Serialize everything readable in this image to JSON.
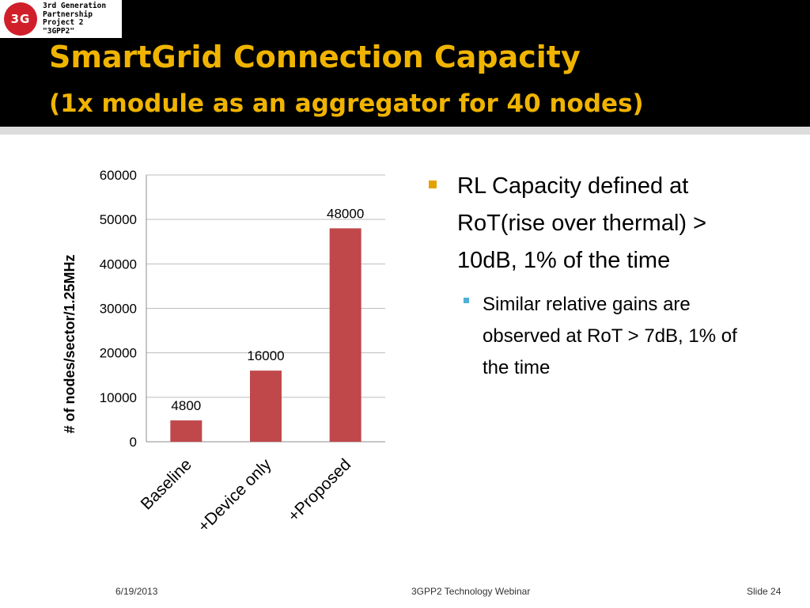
{
  "logo": {
    "badge": "3G",
    "text": "3rd Generation\nPartnership\nProject 2\n\"3GPP2\""
  },
  "slide": {
    "title_line1": "SmartGrid Connection Capacity",
    "title_line2": "(1x module as an aggregator for 40 nodes)",
    "bullet_main": "RL Capacity defined at RoT(rise over thermal) > 10dB, 1% of the time",
    "bullet_sub": "Similar relative gains are observed at RoT > 7dB, 1% of the time"
  },
  "footer": {
    "date": "6/19/2013",
    "center": "3GPP2 Technology Webinar",
    "slide_number": "Slide 24"
  },
  "colors": {
    "header_bg": "#000000",
    "title": "#f0b400",
    "bar": "#c0484a",
    "bullet_main": "#e2a300",
    "bullet_sub": "#4fb0d6"
  },
  "chart_data": {
    "type": "bar",
    "categories": [
      "Baseline",
      "+Device only",
      "+Proposed"
    ],
    "values": [
      4800,
      16000,
      48000
    ],
    "data_labels": [
      "4800",
      "16000",
      "48000"
    ],
    "title": "",
    "xlabel": "",
    "ylabel": "# of nodes/sector/1.25MHz",
    "ylim": [
      0,
      60000
    ],
    "yticks": [
      "0",
      "10000",
      "20000",
      "30000",
      "40000",
      "50000",
      "60000"
    ],
    "grid": true,
    "legend": "none"
  }
}
